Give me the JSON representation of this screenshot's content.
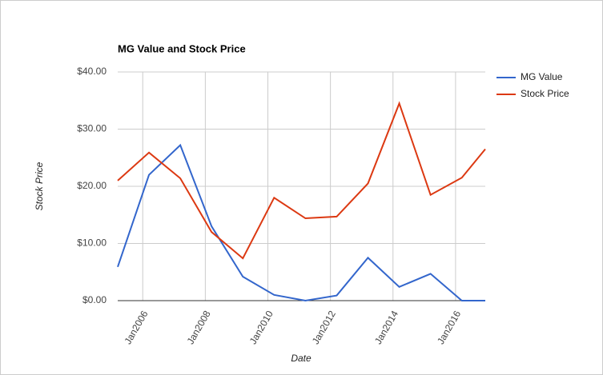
{
  "chart_data": {
    "type": "line",
    "title": "MG Value and Stock Price",
    "x_label": "Date",
    "y_label": "Stock Price",
    "x": [
      2005.2,
      2006.2,
      2007.2,
      2008.2,
      2009.2,
      2010.2,
      2011.2,
      2012.2,
      2013.2,
      2014.2,
      2015.2,
      2016.2,
      2016.95
    ],
    "series": [
      {
        "name": "MG Value",
        "color": "#3366cc",
        "values": [
          5.9,
          22,
          27.2,
          13,
          4.2,
          1,
          0,
          0.9,
          7.5,
          2.4,
          4.7,
          0,
          0
        ]
      },
      {
        "name": "Stock Price",
        "color": "#dc3912",
        "values": [
          21,
          25.9,
          21.4,
          12,
          7.4,
          18,
          14.4,
          14.7,
          20.5,
          34.5,
          18.5,
          21.5,
          26.5
        ]
      }
    ],
    "xlim": [
      2005.2,
      2016.95
    ],
    "xticks": [
      {
        "value": 2006,
        "label": "Jan2006"
      },
      {
        "value": 2008,
        "label": "Jan2008"
      },
      {
        "value": 2010,
        "label": "Jan2010"
      },
      {
        "value": 2012,
        "label": "Jan2012"
      },
      {
        "value": 2014,
        "label": "Jan2014"
      },
      {
        "value": 2016,
        "label": "Jan2016"
      }
    ],
    "ylim": [
      0,
      40
    ],
    "yticks": [
      {
        "value": 0,
        "label": "$0.00"
      },
      {
        "value": 10,
        "label": "$10.00"
      },
      {
        "value": 20,
        "label": "$20.00"
      },
      {
        "value": 30,
        "label": "$30.00"
      },
      {
        "value": 40,
        "label": "$40.00"
      }
    ],
    "grid": true,
    "legend": "right"
  }
}
